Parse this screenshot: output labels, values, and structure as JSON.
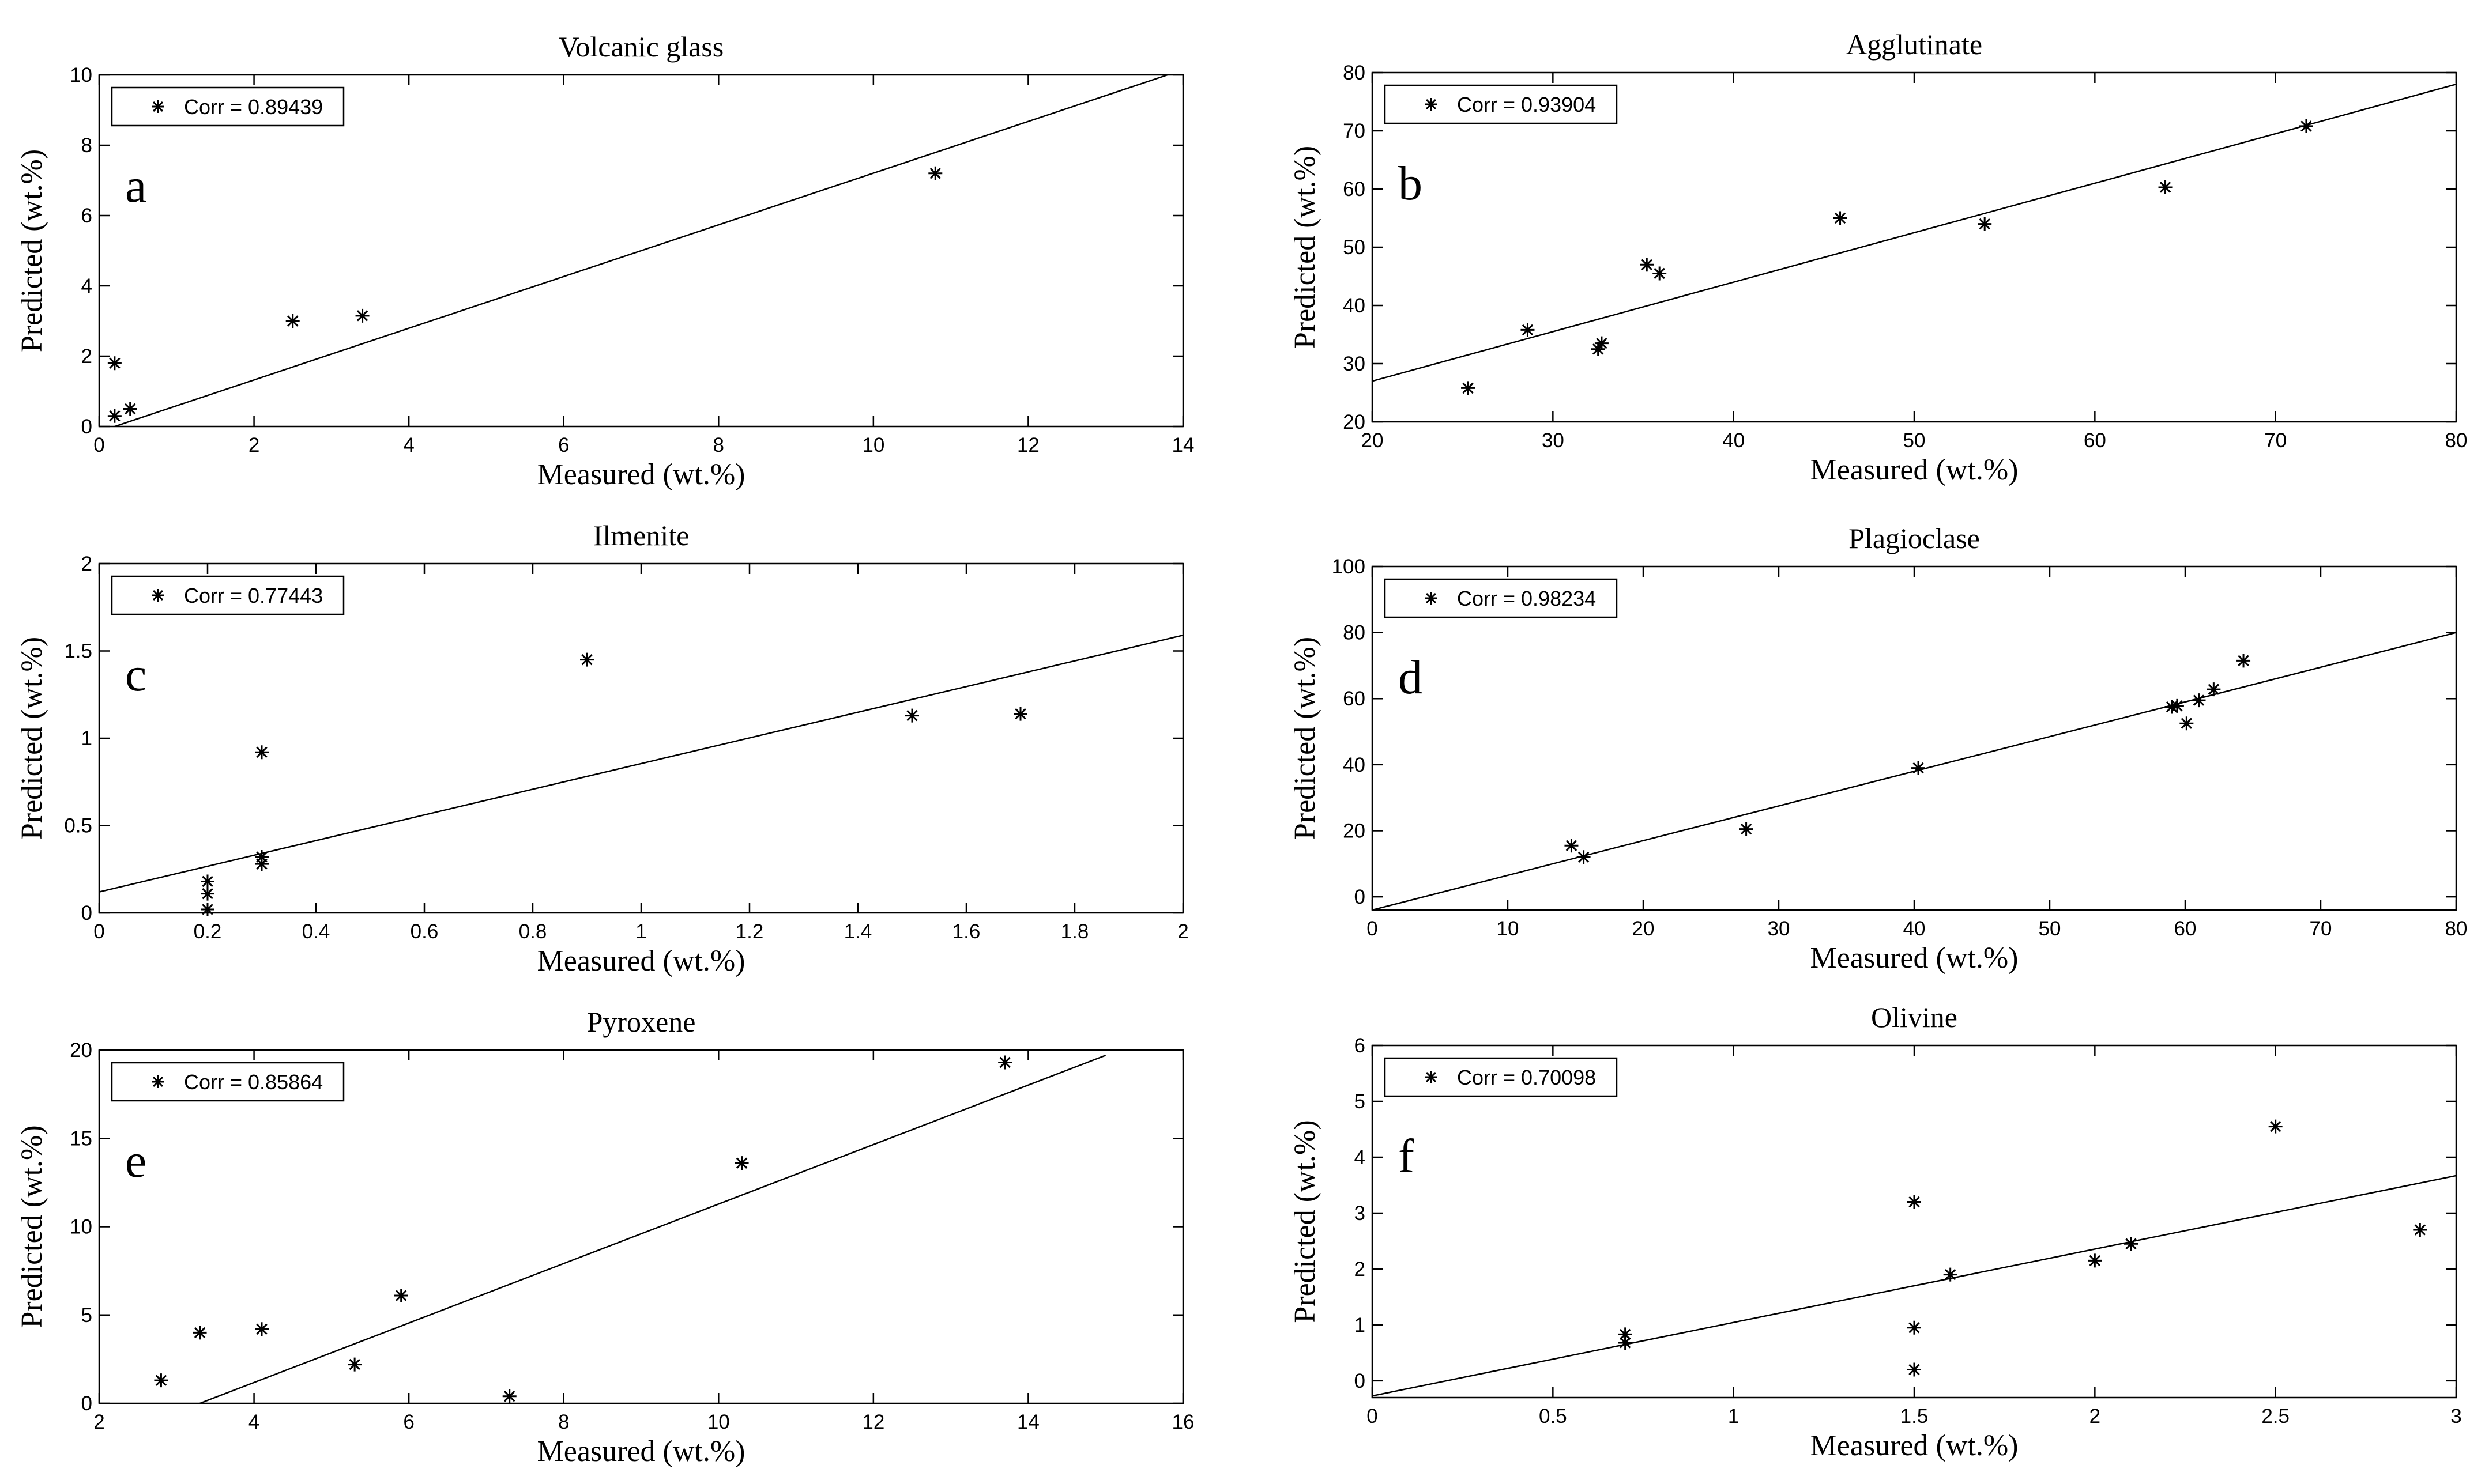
{
  "chart_data": [
    {
      "type": "scatter",
      "panel": "a",
      "title": "Volcanic glass",
      "xlabel": "Measured (wt.%)",
      "ylabel": "Predicted (wt.%)",
      "xlim": [
        0,
        14
      ],
      "ylim": [
        0,
        10
      ],
      "xticks": [
        0,
        2,
        4,
        6,
        8,
        10,
        12,
        14
      ],
      "yticks": [
        0,
        2,
        4,
        6,
        8,
        10
      ],
      "xtick_labels": [
        "0",
        "2",
        "4",
        "6",
        "8",
        "10",
        "12",
        "14"
      ],
      "ytick_labels": [
        "0",
        "2",
        "4",
        "6",
        "8",
        "10"
      ],
      "legend": "Corr = 0.89439",
      "legend_position": "top-left",
      "fit_line": {
        "x": [
          0.2,
          13.8
        ],
        "y": [
          0.0,
          10.0
        ]
      },
      "points": [
        {
          "x": 0.2,
          "y": 1.8
        },
        {
          "x": 0.2,
          "y": 0.3
        },
        {
          "x": 0.4,
          "y": 0.5
        },
        {
          "x": 2.5,
          "y": 3.0
        },
        {
          "x": 3.4,
          "y": 3.15
        },
        {
          "x": 10.8,
          "y": 7.2
        }
      ]
    },
    {
      "type": "scatter",
      "panel": "b",
      "title": "Agglutinate",
      "xlabel": "Measured (wt.%)",
      "ylabel": "Predicted (wt.%)",
      "xlim": [
        20,
        80
      ],
      "ylim": [
        20,
        80
      ],
      "xticks": [
        20,
        30,
        40,
        50,
        60,
        70,
        80
      ],
      "yticks": [
        20,
        30,
        40,
        50,
        60,
        70,
        80
      ],
      "xtick_labels": [
        "20",
        "30",
        "40",
        "50",
        "60",
        "70",
        "80"
      ],
      "ytick_labels": [
        "20",
        "30",
        "40",
        "50",
        "60",
        "70",
        "80"
      ],
      "legend": "Corr = 0.93904",
      "legend_position": "top-left",
      "fit_line": {
        "x": [
          20,
          80
        ],
        "y": [
          27.0,
          78.0
        ]
      },
      "points": [
        {
          "x": 25.3,
          "y": 25.8
        },
        {
          "x": 28.6,
          "y": 35.8
        },
        {
          "x": 32.5,
          "y": 32.5
        },
        {
          "x": 32.7,
          "y": 33.5
        },
        {
          "x": 35.2,
          "y": 47.0
        },
        {
          "x": 35.9,
          "y": 45.5
        },
        {
          "x": 45.9,
          "y": 55.0
        },
        {
          "x": 53.9,
          "y": 54.0
        },
        {
          "x": 63.9,
          "y": 60.3
        },
        {
          "x": 71.7,
          "y": 70.8
        }
      ]
    },
    {
      "type": "scatter",
      "panel": "c",
      "title": "Ilmenite",
      "xlabel": "Measured (wt.%)",
      "ylabel": "Predicted (wt.%)",
      "xlim": [
        0,
        2
      ],
      "ylim": [
        0,
        2
      ],
      "xticks": [
        0,
        0.2,
        0.4,
        0.6,
        0.8,
        1.0,
        1.2,
        1.4,
        1.6,
        1.8,
        2.0
      ],
      "yticks": [
        0,
        0.5,
        1.0,
        1.5,
        2.0
      ],
      "xtick_labels": [
        "0",
        "0.2",
        "0.4",
        "0.6",
        "0.8",
        "1",
        "1.2",
        "1.4",
        "1.6",
        "1.8",
        "2"
      ],
      "ytick_labels": [
        "0",
        "0.5",
        "1",
        "1.5",
        "2"
      ],
      "legend": "Corr = 0.77443",
      "legend_position": "top-left",
      "fit_line": {
        "x": [
          0,
          2
        ],
        "y": [
          0.12,
          1.59
        ]
      },
      "points": [
        {
          "x": 0.2,
          "y": 0.18
        },
        {
          "x": 0.2,
          "y": 0.11
        },
        {
          "x": 0.2,
          "y": 0.02
        },
        {
          "x": 0.3,
          "y": 0.92
        },
        {
          "x": 0.3,
          "y": 0.32
        },
        {
          "x": 0.3,
          "y": 0.28
        },
        {
          "x": 0.9,
          "y": 1.45
        },
        {
          "x": 1.5,
          "y": 1.13
        },
        {
          "x": 1.7,
          "y": 1.14
        }
      ]
    },
    {
      "type": "scatter",
      "panel": "d",
      "title": "Plagioclase",
      "xlabel": "Measured (wt.%)",
      "ylabel": "Predicted (wt.%)",
      "xlim": [
        0,
        80
      ],
      "ylim": [
        -4,
        100
      ],
      "xticks": [
        0,
        10,
        20,
        30,
        40,
        50,
        60,
        70,
        80
      ],
      "yticks": [
        0,
        20,
        40,
        60,
        80,
        100
      ],
      "xtick_labels": [
        "0",
        "10",
        "20",
        "30",
        "40",
        "50",
        "60",
        "70",
        "80"
      ],
      "ytick_labels": [
        "0",
        "20",
        "40",
        "60",
        "80",
        "100"
      ],
      "legend": "Corr = 0.98234",
      "legend_position": "top-left",
      "fit_line": {
        "x": [
          0,
          80
        ],
        "y": [
          -4.0,
          80.0
        ]
      },
      "points": [
        {
          "x": 14.7,
          "y": 15.5
        },
        {
          "x": 15.6,
          "y": 12.0
        },
        {
          "x": 27.6,
          "y": 20.5
        },
        {
          "x": 40.3,
          "y": 39.0
        },
        {
          "x": 59.0,
          "y": 57.5
        },
        {
          "x": 59.4,
          "y": 57.8
        },
        {
          "x": 60.1,
          "y": 52.5
        },
        {
          "x": 61.0,
          "y": 59.5
        },
        {
          "x": 62.1,
          "y": 62.8
        },
        {
          "x": 64.3,
          "y": 71.5
        }
      ]
    },
    {
      "type": "scatter",
      "panel": "e",
      "title": "Pyroxene",
      "xlabel": "Measured (wt.%)",
      "ylabel": "Predicted (wt.%)",
      "xlim": [
        2,
        16
      ],
      "ylim": [
        0,
        20
      ],
      "xticks": [
        2,
        4,
        6,
        8,
        10,
        12,
        14,
        16
      ],
      "yticks": [
        0,
        5,
        10,
        15,
        20
      ],
      "xtick_labels": [
        "2",
        "4",
        "6",
        "8",
        "10",
        "12",
        "14",
        "16"
      ],
      "ytick_labels": [
        "0",
        "5",
        "10",
        "15",
        "20"
      ],
      "legend": "Corr = 0.85864",
      "legend_position": "top-left",
      "fit_line": {
        "x": [
          3.3,
          15.0
        ],
        "y": [
          0.0,
          19.7
        ]
      },
      "points": [
        {
          "x": 2.8,
          "y": 1.3
        },
        {
          "x": 3.3,
          "y": 4.0
        },
        {
          "x": 4.1,
          "y": 4.2
        },
        {
          "x": 5.3,
          "y": 2.2
        },
        {
          "x": 5.9,
          "y": 6.1
        },
        {
          "x": 7.3,
          "y": 0.4
        },
        {
          "x": 10.3,
          "y": 13.6
        },
        {
          "x": 13.7,
          "y": 19.3
        }
      ]
    },
    {
      "type": "scatter",
      "panel": "f",
      "title": "Olivine",
      "xlabel": "Measured (wt.%)",
      "ylabel": "Predicted (wt.%)",
      "xlim": [
        0,
        3
      ],
      "ylim": [
        -0.3,
        6
      ],
      "xticks": [
        0,
        0.5,
        1.0,
        1.5,
        2.0,
        2.5,
        3.0
      ],
      "yticks": [
        0,
        1,
        2,
        3,
        4,
        5,
        6
      ],
      "xtick_labels": [
        "0",
        "0.5",
        "1",
        "1.5",
        "2",
        "2.5",
        "3"
      ],
      "ytick_labels": [
        "0",
        "1",
        "2",
        "3",
        "4",
        "5",
        "6"
      ],
      "legend": "Corr = 0.70098",
      "legend_position": "top-left",
      "fit_line": {
        "x": [
          0,
          3
        ],
        "y": [
          -0.27,
          3.67
        ]
      },
      "points": [
        {
          "x": 0.7,
          "y": 0.83
        },
        {
          "x": 0.7,
          "y": 0.68
        },
        {
          "x": 1.5,
          "y": 3.2
        },
        {
          "x": 1.5,
          "y": 0.95
        },
        {
          "x": 1.5,
          "y": 0.2
        },
        {
          "x": 1.6,
          "y": 1.9
        },
        {
          "x": 2.0,
          "y": 2.15
        },
        {
          "x": 2.1,
          "y": 2.45
        },
        {
          "x": 2.5,
          "y": 4.55
        },
        {
          "x": 2.9,
          "y": 2.7
        }
      ]
    }
  ]
}
